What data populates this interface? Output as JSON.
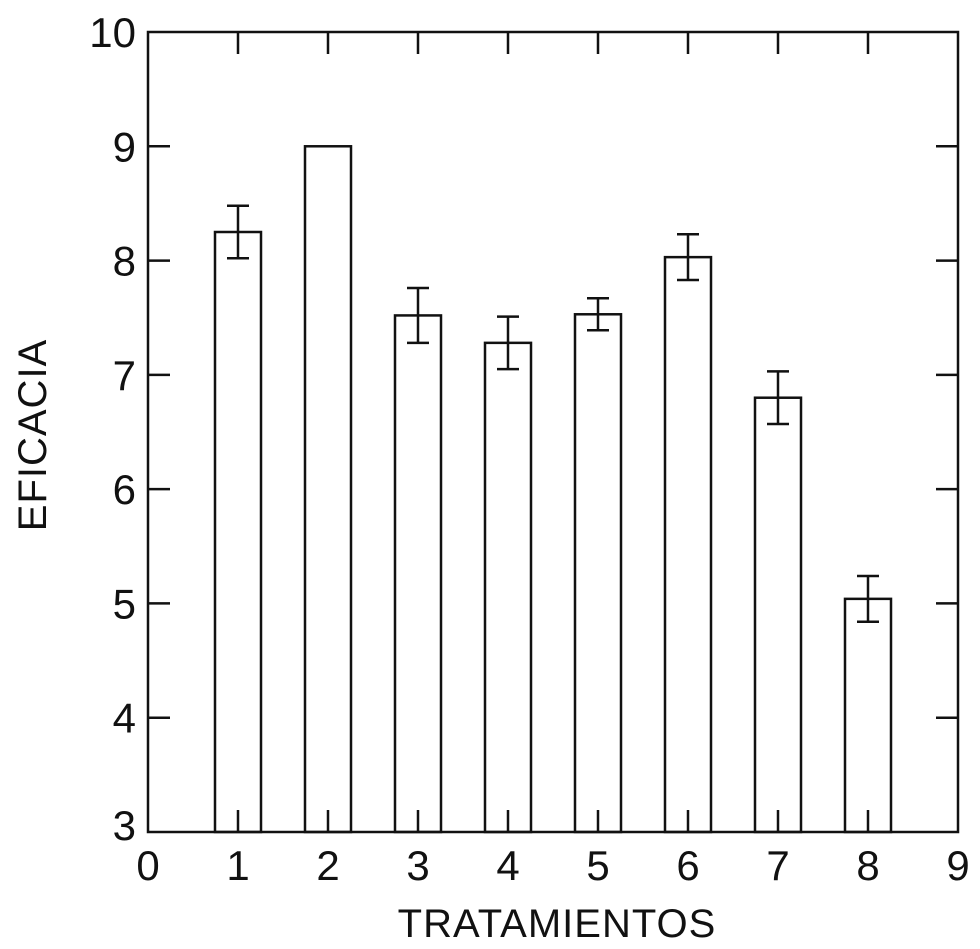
{
  "chart_data": {
    "type": "bar",
    "title": "",
    "xlabel": "TRATAMIENTOS",
    "ylabel": "EFICACIA",
    "xlim": [
      0,
      9
    ],
    "ylim": [
      3,
      10
    ],
    "xticks": [
      "0",
      "1",
      "2",
      "3",
      "4",
      "5",
      "6",
      "7",
      "8",
      "9"
    ],
    "yticks": [
      "3",
      "4",
      "5",
      "6",
      "7",
      "8",
      "9",
      "10"
    ],
    "grid": false,
    "categories": [
      1,
      2,
      3,
      4,
      5,
      6,
      7,
      8
    ],
    "values": [
      8.25,
      9.0,
      7.52,
      7.28,
      7.53,
      8.03,
      6.8,
      5.04
    ],
    "error": [
      0.23,
      0.0,
      0.24,
      0.23,
      0.14,
      0.2,
      0.23,
      0.2
    ],
    "bar_color": "#ffffff",
    "line_color": "#111111"
  }
}
